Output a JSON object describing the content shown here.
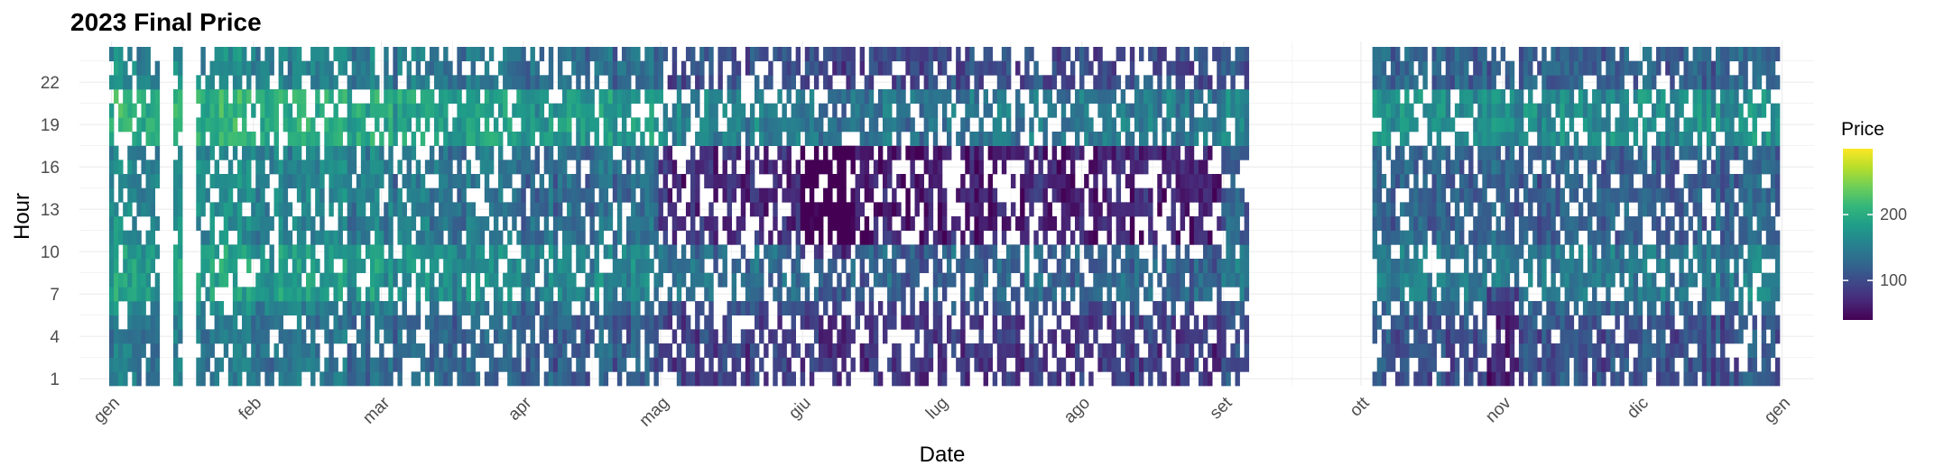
{
  "chart_data": {
    "type": "heatmap",
    "title": "2023 Final Price",
    "xlabel": "Date",
    "ylabel": "Hour",
    "x_range": [
      "2022-12-25",
      "2024-01-08"
    ],
    "y_range": [
      0.5,
      24.5
    ],
    "x_ticks": [
      {
        "date": "2023-01-01",
        "label": "gen"
      },
      {
        "date": "2023-02-01",
        "label": "feb"
      },
      {
        "date": "2023-03-01",
        "label": "mar"
      },
      {
        "date": "2023-04-01",
        "label": "apr"
      },
      {
        "date": "2023-05-01",
        "label": "mag"
      },
      {
        "date": "2023-06-01",
        "label": "giu"
      },
      {
        "date": "2023-07-01",
        "label": "lug"
      },
      {
        "date": "2023-08-01",
        "label": "ago"
      },
      {
        "date": "2023-09-01",
        "label": "set"
      },
      {
        "date": "2023-10-01",
        "label": "ott"
      },
      {
        "date": "2023-11-01",
        "label": "nov"
      },
      {
        "date": "2023-12-01",
        "label": "dic"
      },
      {
        "date": "2024-01-01",
        "label": "gen"
      }
    ],
    "y_ticks": [
      1,
      4,
      7,
      10,
      13,
      16,
      19,
      22
    ],
    "hours": [
      1,
      24
    ],
    "date_range": [
      "2023-01-01",
      "2023-12-31"
    ],
    "missing_days": [
      {
        "from": "2023-01-12",
        "to": "2023-01-14"
      },
      {
        "from": "2023-01-17",
        "to": "2023-01-19"
      },
      {
        "from": "2023-09-07",
        "to": "2023-10-03"
      }
    ],
    "color_scale": {
      "name": "viridis",
      "legend_title": "Price",
      "min": 40,
      "max": 300,
      "breaks": [
        100,
        200
      ],
      "colors": [
        "#440154",
        "#482878",
        "#3e4989",
        "#31688e",
        "#26828e",
        "#1f9e89",
        "#35b779",
        "#6ece58",
        "#b5de2b",
        "#fde725"
      ]
    },
    "price_pattern": {
      "monthly_base": [
        160,
        150,
        140,
        130,
        105,
        95,
        100,
        100,
        115,
        120,
        115,
        120
      ],
      "hourly_shape": "evening peak around hours 18-21, morning peak around hours 8-9, midday trough in May-Aug",
      "low_price_episodes": [
        "2023-06-01 to 2023-06-12 midday",
        "2023-10-29 to 2023-11-03 night"
      ]
    },
    "grid": true,
    "legend_position": "right"
  }
}
